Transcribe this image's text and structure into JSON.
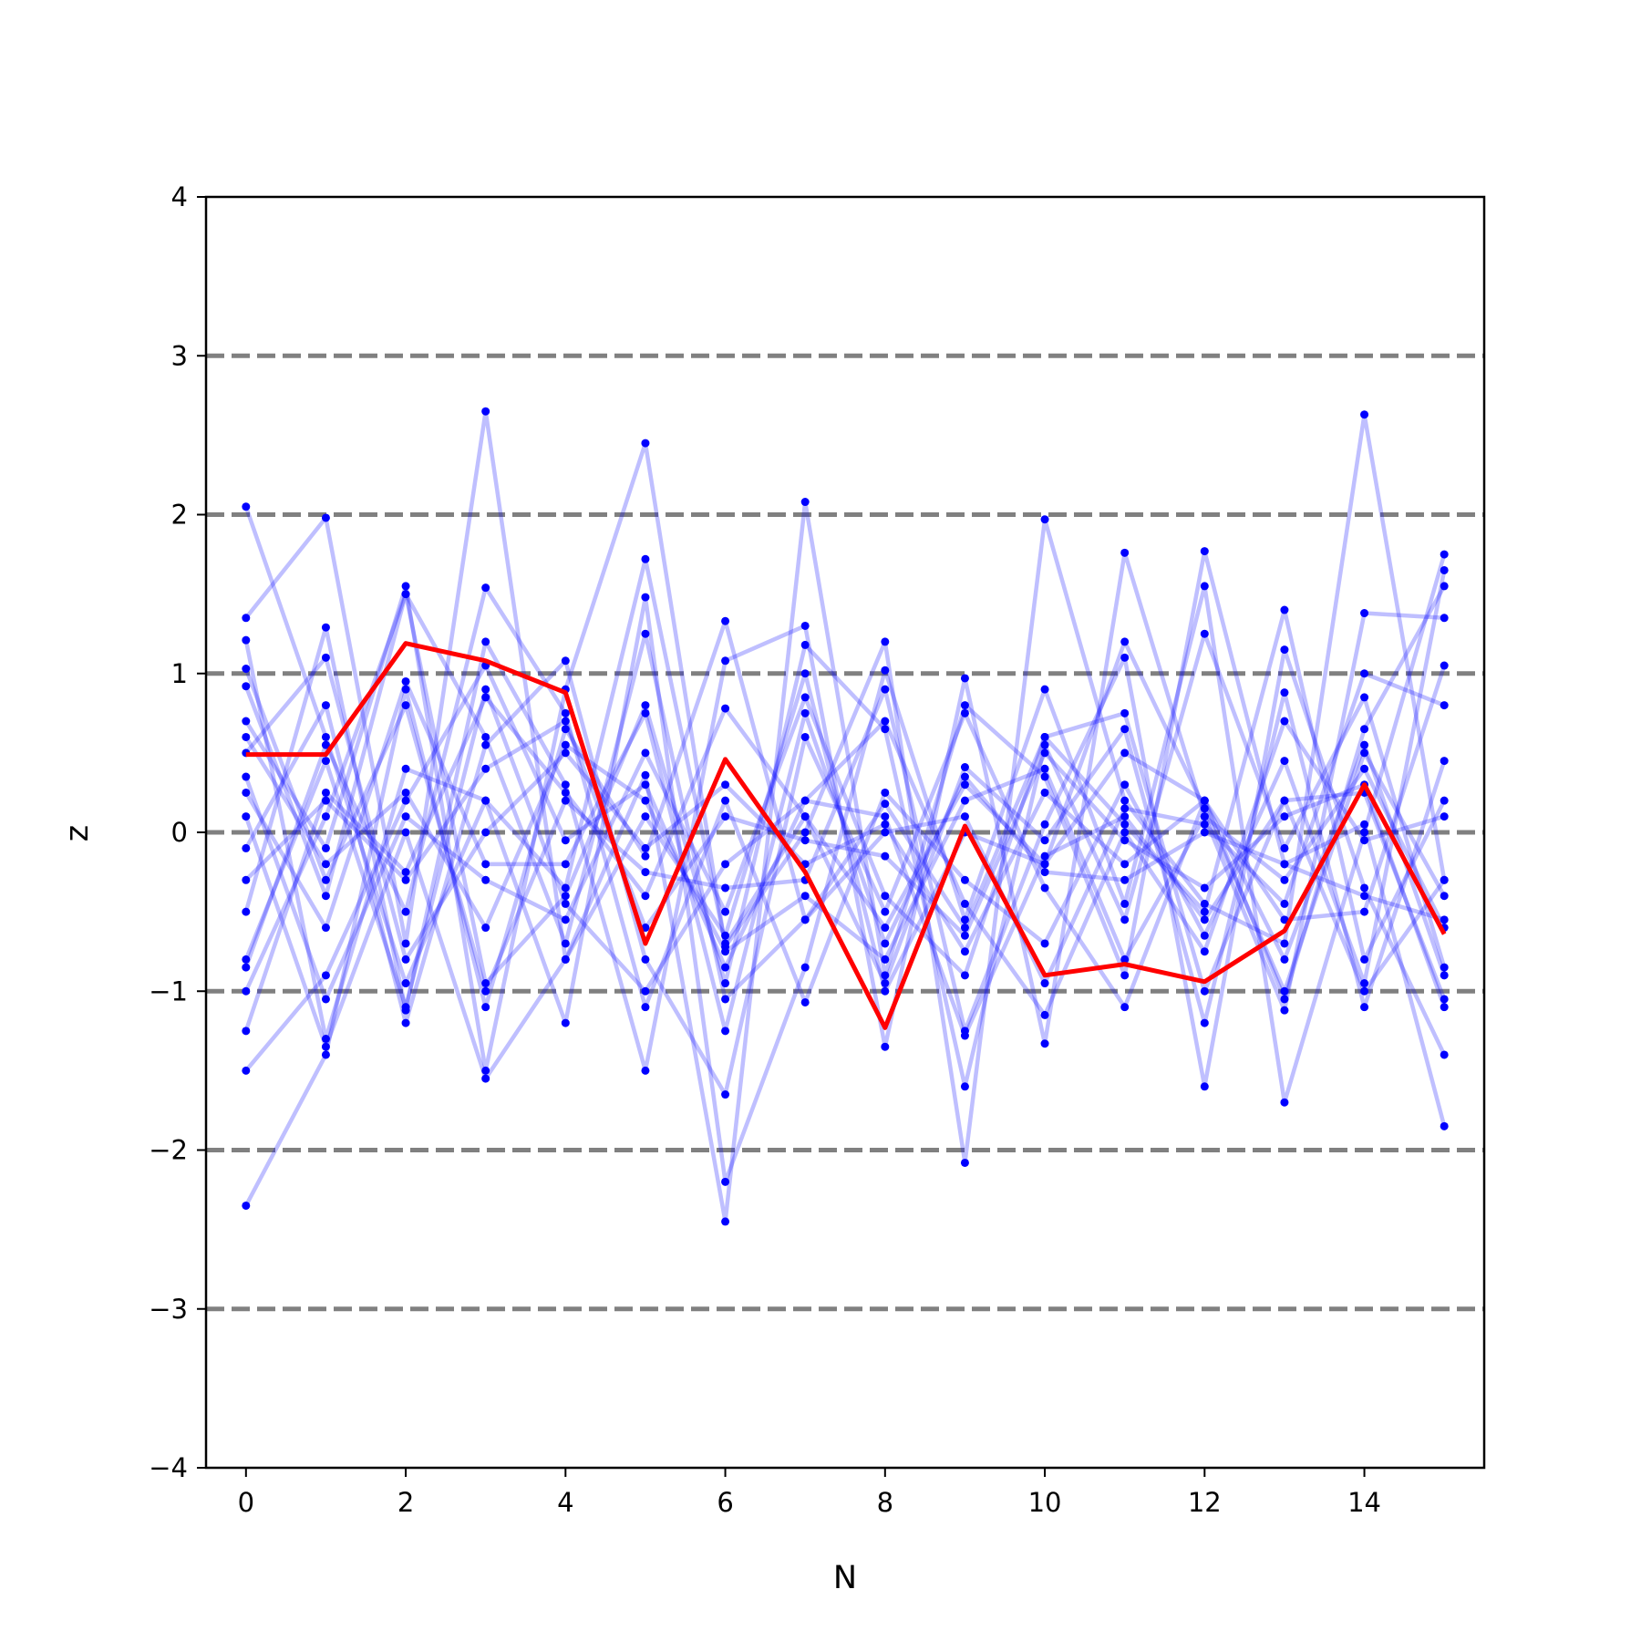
{
  "chart_data": {
    "type": "line",
    "title": "",
    "xlabel": "N",
    "ylabel": "z",
    "xlim": [
      -0.5,
      15.5
    ],
    "ylim": [
      -4,
      4
    ],
    "x_ticks": [
      0,
      2,
      4,
      6,
      8,
      10,
      12,
      14
    ],
    "y_ticks": [
      -4,
      -3,
      -2,
      -1,
      0,
      1,
      2,
      3,
      4
    ],
    "x_tick_labels": [
      "0",
      "2",
      "4",
      "6",
      "8",
      "10",
      "12",
      "14"
    ],
    "y_tick_labels": [
      "−4",
      "−3",
      "−2",
      "−1",
      "0",
      "1",
      "2",
      "3",
      "4"
    ],
    "reference_lines": [
      -3,
      -2,
      -1,
      0,
      1,
      2,
      3
    ],
    "x": [
      0,
      1,
      2,
      3,
      4,
      5,
      6,
      7,
      8,
      9,
      10,
      11,
      12,
      13,
      14,
      15
    ],
    "highlight": {
      "values": [
        0.49,
        0.49,
        1.19,
        1.08,
        0.88,
        -0.7,
        0.46,
        -0.25,
        -1.23,
        0.04,
        -0.9,
        -0.83,
        -0.94,
        -0.62,
        0.3,
        -0.64
      ]
    },
    "background_series": [
      {
        "values": [
          2.05,
          0.6,
          -0.95,
          0.2,
          -0.35,
          1.72,
          -0.7,
          0.1,
          -0.6,
          0.3,
          -0.2,
          1.2,
          0.15,
          -1.0,
          0.5,
          -0.4
        ]
      },
      {
        "values": [
          -2.35,
          -1.4,
          0.9,
          -1.1,
          0.65,
          -0.15,
          1.33,
          -0.55,
          0.18,
          -0.6,
          0.6,
          0.05,
          -0.5,
          1.4,
          -0.8,
          0.2
        ]
      },
      {
        "values": [
          1.35,
          1.98,
          -0.7,
          2.65,
          -0.8,
          0.36,
          -2.45,
          2.08,
          -0.9,
          0.8,
          0.35,
          -0.9,
          1.77,
          -0.2,
          0.05,
          -1.85
        ]
      },
      {
        "values": [
          0.7,
          -0.1,
          1.55,
          -1.5,
          0.9,
          2.45,
          -0.72,
          0.0,
          1.2,
          -2.08,
          1.97,
          0.2,
          -0.45,
          -0.7,
          2.63,
          -0.3
        ]
      },
      {
        "values": [
          -0.5,
          1.29,
          -1.12,
          1.2,
          0.3,
          -1.5,
          1.08,
          1.3,
          -1.35,
          0.97,
          -1.33,
          1.76,
          0.1,
          -1.12,
          1.38,
          1.35
        ]
      },
      {
        "values": [
          1.21,
          -1.3,
          0.4,
          0.2,
          -1.2,
          1.48,
          -2.2,
          -0.85,
          1.02,
          -0.55,
          0.9,
          -0.45,
          1.55,
          -1.7,
          0.0,
          1.75
        ]
      },
      {
        "values": [
          -1.25,
          0.25,
          -0.25,
          0.85,
          0.25,
          -0.4,
          0.78,
          0.1,
          -0.95,
          0.41,
          -0.05,
          0.65,
          -1.2,
          0.88,
          -1.1,
          0.45
        ]
      },
      {
        "values": [
          0.92,
          -0.4,
          1.5,
          -0.95,
          -0.4,
          0.8,
          -0.95,
          1.18,
          0.65,
          -1.6,
          0.55,
          -0.55,
          1.25,
          -0.1,
          0.85,
          -0.85
        ]
      },
      {
        "values": [
          -0.85,
          0.55,
          -0.5,
          1.54,
          0.75,
          -1.1,
          0.2,
          -1.07,
          0.25,
          -0.3,
          -0.7,
          0.3,
          -0.65,
          0.45,
          -0.95,
          1.65
        ]
      },
      {
        "values": [
          0.35,
          -1.05,
          0.1,
          -0.3,
          -0.55,
          0.5,
          -0.5,
          0.85,
          -0.4,
          -0.9,
          0.6,
          0.75,
          -1.0,
          0.2,
          0.25,
          -1.05
        ]
      },
      {
        "values": [
          -0.1,
          0.8,
          -1.2,
          0.55,
          1.08,
          -0.8,
          -1.65,
          0.6,
          -0.5,
          0.75,
          -0.35,
          -1.1,
          0.2,
          -0.55,
          -0.5,
          1.05
        ]
      },
      {
        "values": [
          1.03,
          -0.3,
          0.8,
          -1.0,
          0.2,
          -0.25,
          -0.35,
          -0.3,
          0.9,
          -1.25,
          0.05,
          1.1,
          -1.6,
          1.15,
          -0.35,
          -1.4
        ]
      },
      {
        "values": [
          -1.0,
          0.1,
          1.5,
          0.6,
          -0.7,
          1.25,
          -1.05,
          -0.55,
          0.0,
          0.1,
          -0.95,
          0.15,
          0.05,
          -0.45,
          1.0,
          0.8
        ]
      },
      {
        "values": [
          0.5,
          1.1,
          -0.8,
          0.0,
          0.5,
          -0.1,
          0.3,
          -0.2,
          0.05,
          -0.75,
          0.25,
          -0.2,
          0.2,
          -0.8,
          0.55,
          -0.9
        ]
      },
      {
        "values": [
          -1.5,
          -0.9,
          0.2,
          1.05,
          -0.05,
          0.3,
          -0.85,
          0.2,
          0.7,
          -0.45,
          -1.15,
          0.0,
          -0.75,
          0.7,
          -0.05,
          0.1
        ]
      },
      {
        "values": [
          0.25,
          -0.6,
          0.95,
          -0.2,
          -0.2,
          0.75,
          -1.25,
          0.75,
          -0.7,
          0.35,
          -0.25,
          -0.3,
          0.0,
          -0.2,
          -0.4,
          -0.55
        ]
      },
      {
        "values": [
          -0.3,
          0.2,
          -0.3,
          0.4,
          0.7,
          -0.6,
          0.1,
          -0.05,
          -0.15,
          -0.65,
          0.5,
          -0.05,
          -0.35,
          0.1,
          0.3,
          -1.1
        ]
      },
      {
        "values": [
          0.1,
          -1.35,
          0.0,
          -1.55,
          -0.8,
          0.1,
          -0.65,
          1.0,
          -1.0,
          0.0,
          -0.2,
          0.5,
          0.2,
          -1.05,
          0.65,
          1.55
        ]
      },
      {
        "values": [
          -0.8,
          0.45,
          -1.1,
          0.9,
          -0.45,
          -1.0,
          -0.2,
          0.2,
          0.1,
          -1.28,
          -0.15,
          0.1,
          -0.55,
          0.2,
          -1.0,
          -0.3
        ]
      },
      {
        "values": [
          0.6,
          -0.2,
          0.25,
          -0.6,
          0.55,
          0.2,
          -0.75,
          -0.4,
          -0.8,
          0.2,
          0.4,
          -0.8,
          0.1,
          -0.3,
          0.4,
          -0.6
        ]
      }
    ]
  }
}
